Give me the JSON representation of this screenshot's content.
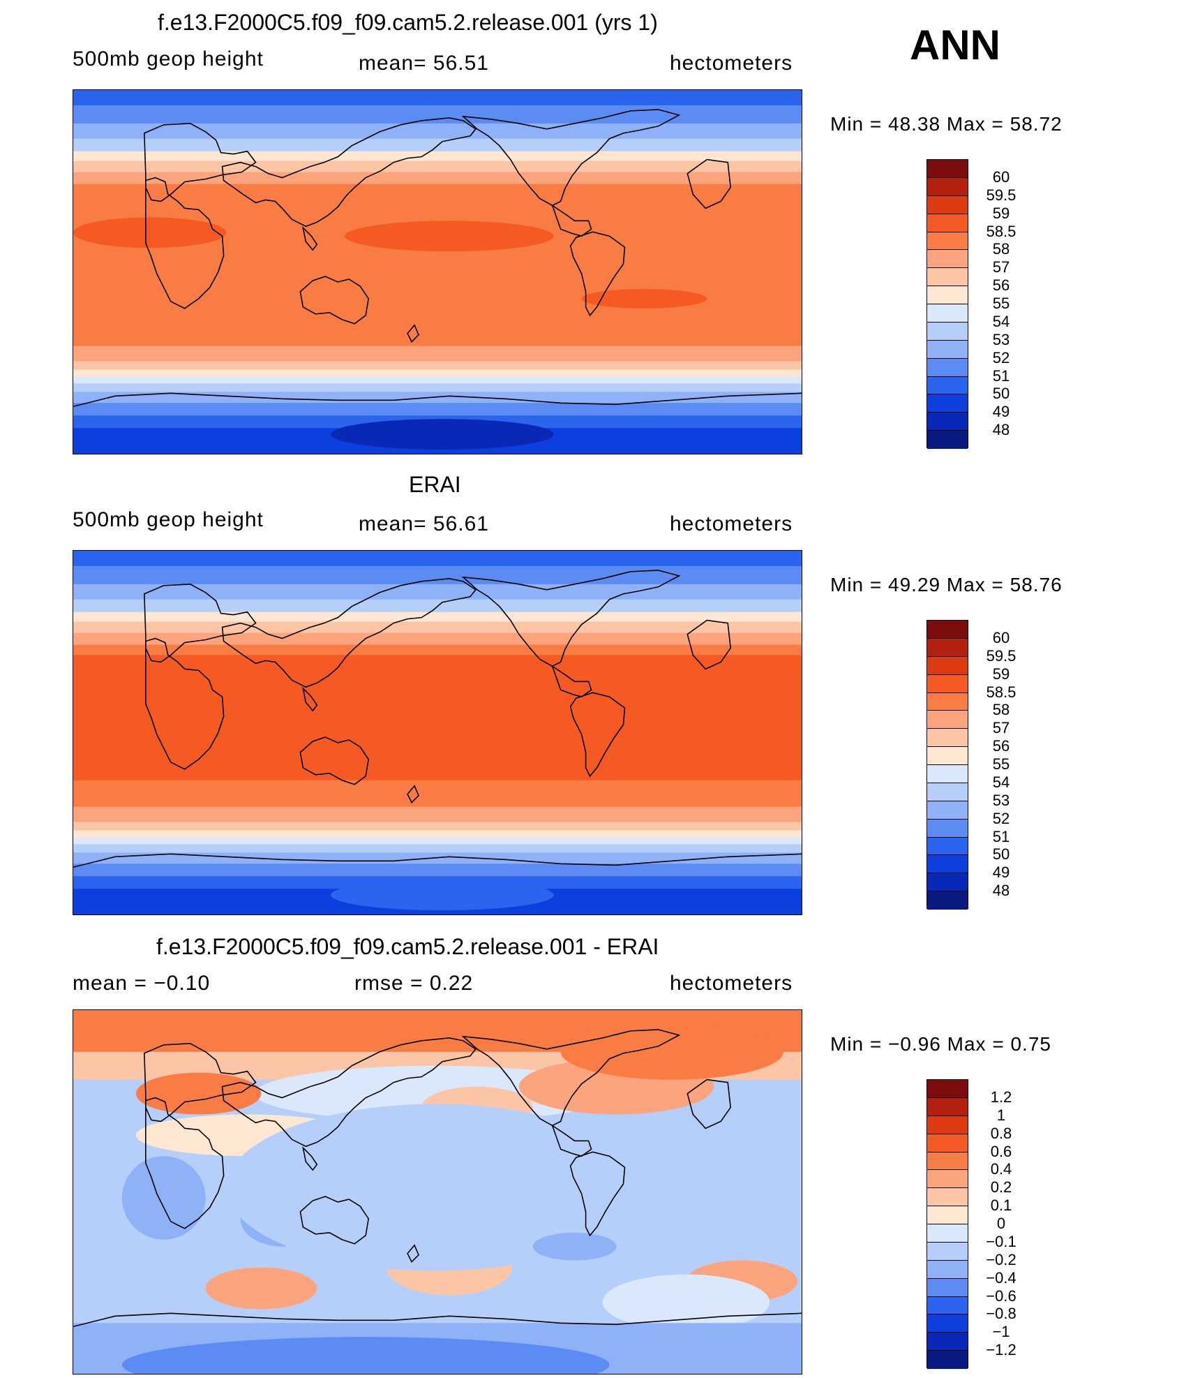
{
  "season": "ANN",
  "panels": [
    {
      "title": "f.e13.F2000C5.f09_f09.cam5.2.release.001 (yrs 1)",
      "left": "500mb geop height",
      "center": "mean=   56.51",
      "right": "hectometers",
      "minmax": "Min =   48.38  Max =   58.72",
      "field": "model"
    },
    {
      "title": "ERAI",
      "left": "500mb geop height",
      "center": "mean=   56.61",
      "right": "hectometers",
      "minmax": "Min =   49.29  Max =   58.76",
      "field": "obs"
    },
    {
      "title": "f.e13.F2000C5.f09_f09.cam5.2.release.001 - ERAI",
      "left": "mean =   −0.10",
      "center": "rmse =    0.22",
      "right": "hectometers",
      "minmax": "Min =   −0.96  Max =    0.75",
      "field": "diff"
    }
  ],
  "colorbars": {
    "abs": {
      "labels": [
        "60",
        "59.5",
        "59",
        "58.5",
        "58",
        "57",
        "56",
        "55",
        "54",
        "53",
        "52",
        "51",
        "50",
        "49",
        "48"
      ],
      "colors": [
        "#7d0d0d",
        "#b2200e",
        "#dc3a10",
        "#f55a22",
        "#f97c45",
        "#fba47d",
        "#fcc5a6",
        "#fde6d2",
        "#dbe7fb",
        "#b5cffa",
        "#8fb1f8",
        "#5b8bf3",
        "#2a64ef",
        "#0c3fde",
        "#0828b5",
        "#081a82"
      ]
    },
    "diff": {
      "labels": [
        "1.2",
        "1",
        "0.8",
        "0.6",
        "0.4",
        "0.2",
        "0.1",
        "0",
        "−0.1",
        "−0.2",
        "−0.4",
        "−0.6",
        "−0.8",
        "−1",
        "−1.2"
      ],
      "colors": [
        "#7d0d0d",
        "#b2200e",
        "#dc3a10",
        "#f55a22",
        "#f97c45",
        "#fba47d",
        "#fcc5a6",
        "#fde6d2",
        "#dbe7fb",
        "#b5cffa",
        "#8fb1f8",
        "#5b8bf3",
        "#2a64ef",
        "#0c3fde",
        "#0828b5",
        "#081a82"
      ]
    }
  }
}
